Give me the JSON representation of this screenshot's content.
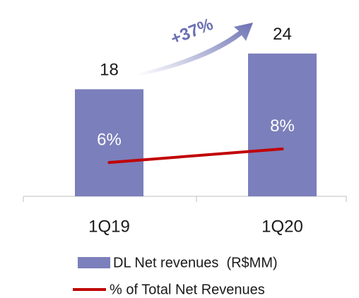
{
  "chart_data": {
    "type": "bar",
    "categories": [
      "1Q19",
      "1Q20"
    ],
    "series": [
      {
        "name": "DL Net revenues  (R$MM)",
        "color": "#7b7fbb",
        "values": [
          18,
          24
        ]
      },
      {
        "name": "% of Total Net Revenues",
        "color": "#c00000",
        "type": "line",
        "axis": "y2",
        "values": [
          6,
          8
        ],
        "value_labels": [
          "6%",
          "8%"
        ]
      }
    ],
    "ylim": [
      0,
      33
    ],
    "y2lim": [
      1,
      30
    ],
    "annotations": [
      "+37%"
    ]
  }
}
